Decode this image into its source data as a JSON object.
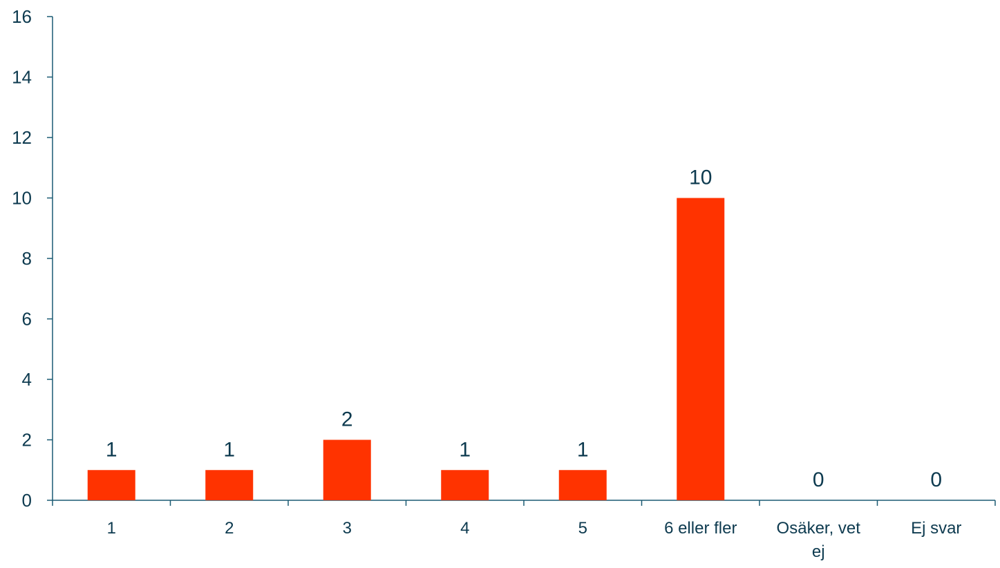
{
  "chart_data": {
    "type": "bar",
    "categories": [
      "1",
      "2",
      "3",
      "4",
      "5",
      "6 eller fler",
      "Osäker, vet ej",
      "Ej svar"
    ],
    "category_label_lines": [
      [
        "1"
      ],
      [
        "2"
      ],
      [
        "3"
      ],
      [
        "4"
      ],
      [
        "5"
      ],
      [
        "6 eller fler"
      ],
      [
        "Osäker, vet",
        "ej"
      ],
      [
        "Ej svar"
      ]
    ],
    "values": [
      1,
      1,
      2,
      1,
      1,
      10,
      0,
      0
    ],
    "data_labels": [
      "1",
      "1",
      "2",
      "1",
      "1",
      "10",
      "0",
      "0"
    ],
    "ylim": [
      0,
      16
    ],
    "yticks": [
      0,
      2,
      4,
      6,
      8,
      10,
      12,
      14,
      16
    ],
    "ytick_labels": [
      "0",
      "2",
      "4",
      "6",
      "8",
      "10",
      "12",
      "14",
      "16"
    ],
    "grid": false,
    "legend": "none"
  },
  "colors": {
    "bar": "#ff3300",
    "axis": "#1a5a73",
    "text": "#0d3a4f",
    "background": "#ffffff"
  }
}
